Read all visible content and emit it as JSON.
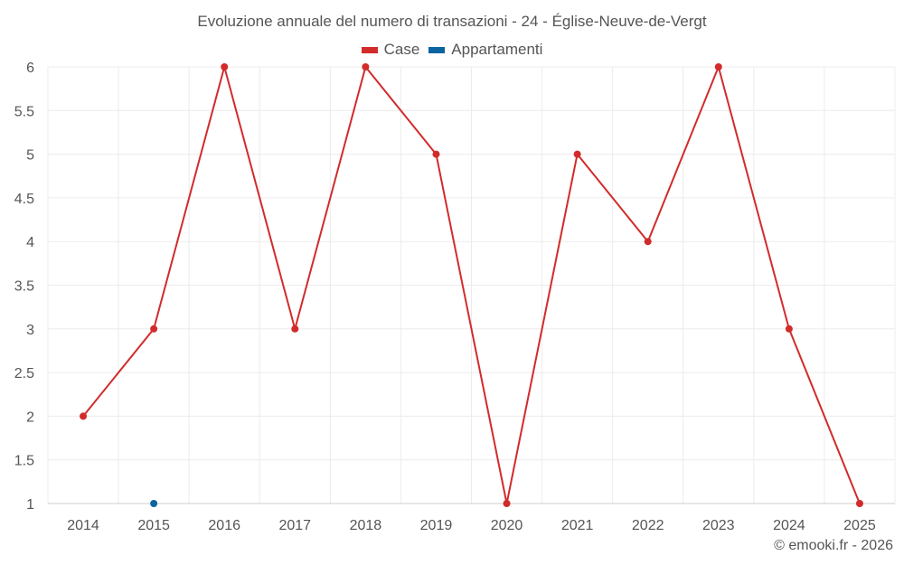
{
  "chart_data": {
    "type": "line",
    "title": "Evoluzione annuale del numero di transazioni - 24 - Église-Neuve-de-Vergt",
    "x": [
      "2014",
      "2015",
      "2016",
      "2017",
      "2018",
      "2019",
      "2020",
      "2021",
      "2022",
      "2023",
      "2024",
      "2025"
    ],
    "ylim": [
      1,
      6
    ],
    "yticks": [
      1,
      1.5,
      2,
      2.5,
      3,
      3.5,
      4,
      4.5,
      5,
      5.5,
      6
    ],
    "grid": true,
    "legend_position": "top-center",
    "series": [
      {
        "name": "Case",
        "color": "#d22b2b",
        "values": [
          2,
          3,
          6,
          3,
          6,
          5,
          1,
          5,
          4,
          6,
          3,
          1
        ]
      },
      {
        "name": "Appartamenti",
        "color": "#0a64a0",
        "values": [
          null,
          1,
          null,
          null,
          null,
          null,
          null,
          null,
          null,
          null,
          null,
          null
        ]
      }
    ]
  },
  "credit": "© emooki.fr - 2026"
}
